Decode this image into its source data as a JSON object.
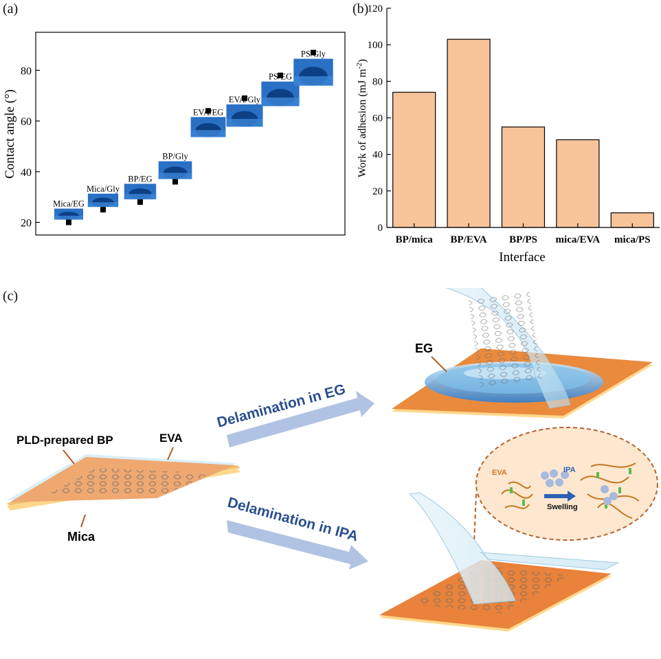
{
  "panel_labels": {
    "a": "(a)",
    "b": "(b)",
    "c": "(c)"
  },
  "chart_data": [
    {
      "type": "scatter",
      "panel": "(a)",
      "ylabel": "Contact angle (°)",
      "xlabel": "",
      "ylim": [
        15,
        95
      ],
      "yticks": [
        20,
        40,
        60,
        80
      ],
      "grid": false,
      "categories": [
        "Mica/EG",
        "Mica/Gly",
        "BP/EG",
        "BP/Gly",
        "EVA/EG",
        "EVA/Gly",
        "PS/EG",
        "PS/Gly"
      ],
      "values": [
        20,
        25,
        28,
        36,
        64,
        69,
        78,
        87
      ],
      "marker": "square",
      "colors": {
        "marker": "#000000",
        "droplet": "#1c5fb3"
      }
    },
    {
      "type": "bar",
      "panel": "(b)",
      "xlabel": "Interface",
      "ylabel": "Work of adhesion (mJ m⁻²)",
      "ylabel_main": "Work of adhesion (mJ m",
      "ylabel_sup": "-2",
      "ylabel_close": ")",
      "ylim": [
        0,
        120
      ],
      "yticks": [
        0,
        20,
        40,
        60,
        80,
        100,
        120
      ],
      "grid": false,
      "categories": [
        "BP/mica",
        "BP/EVA",
        "BP/PS",
        "mica/EVA",
        "mica/PS"
      ],
      "values": [
        74,
        103,
        55,
        48,
        8
      ],
      "colors": {
        "bar": "#f7c49a",
        "edge": "#000000"
      }
    }
  ],
  "schematic": {
    "left_labels": {
      "bp": "PLD-prepared BP",
      "eva": "EVA",
      "mica": "Mica"
    },
    "arrow_top": "Delamination in EG",
    "arrow_bottom": "Delamination in IPA",
    "droplet_label": "EG",
    "inset": {
      "eva": "EVA",
      "ipa": "IPA",
      "swelling": "Swelling"
    },
    "colors": {
      "mica": "#f0a66a",
      "mica_dark": "#e0782e",
      "arrow": "#a9bde0",
      "text_arrow": "#2a4f8f",
      "film": "#d8ecf6",
      "droplet": "#3d8fd6",
      "inset_bg": "#fbe3c8",
      "inset_border": "#b5622a"
    }
  }
}
